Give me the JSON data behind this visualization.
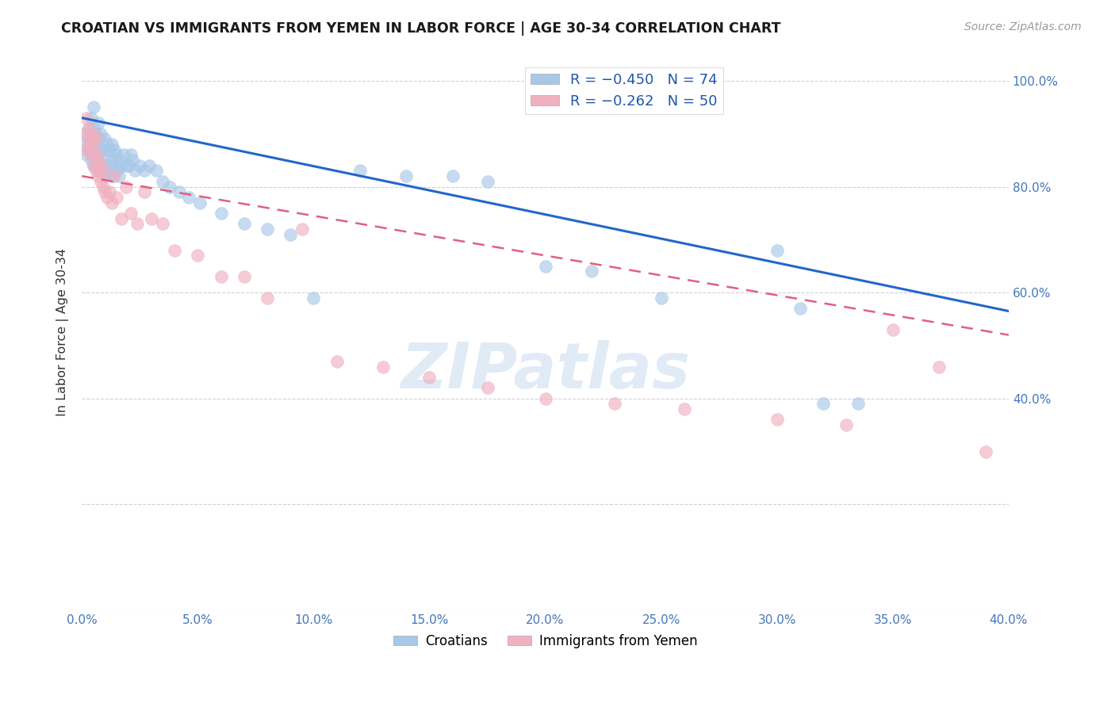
{
  "title": "CROATIAN VS IMMIGRANTS FROM YEMEN IN LABOR FORCE | AGE 30-34 CORRELATION CHART",
  "source": "Source: ZipAtlas.com",
  "ylabel": "In Labor Force | Age 30-34",
  "xlim": [
    0.0,
    0.4
  ],
  "ylim": [
    0.0,
    1.05
  ],
  "x_ticks": [
    0.0,
    0.05,
    0.1,
    0.15,
    0.2,
    0.25,
    0.3,
    0.35,
    0.4
  ],
  "y_ticks": [
    0.0,
    0.2,
    0.4,
    0.6,
    0.8,
    1.0
  ],
  "y_ticks_right": [
    0.4,
    0.6,
    0.8,
    1.0
  ],
  "blue_R": -0.45,
  "blue_N": 74,
  "pink_R": -0.262,
  "pink_N": 50,
  "blue_color": "#a8c8e8",
  "pink_color": "#f0b0c0",
  "blue_line_color": "#2266cc",
  "pink_line_color": "#e06080",
  "watermark": "ZIPatlas",
  "blue_scatter_x": [
    0.001,
    0.002,
    0.002,
    0.003,
    0.003,
    0.003,
    0.004,
    0.004,
    0.004,
    0.005,
    0.005,
    0.005,
    0.005,
    0.005,
    0.006,
    0.006,
    0.006,
    0.007,
    0.007,
    0.007,
    0.007,
    0.008,
    0.008,
    0.008,
    0.009,
    0.009,
    0.01,
    0.01,
    0.01,
    0.011,
    0.011,
    0.012,
    0.012,
    0.013,
    0.013,
    0.013,
    0.014,
    0.014,
    0.015,
    0.015,
    0.016,
    0.016,
    0.017,
    0.018,
    0.019,
    0.02,
    0.021,
    0.022,
    0.023,
    0.025,
    0.027,
    0.029,
    0.032,
    0.035,
    0.038,
    0.042,
    0.046,
    0.051,
    0.06,
    0.07,
    0.08,
    0.09,
    0.1,
    0.12,
    0.14,
    0.16,
    0.175,
    0.2,
    0.22,
    0.25,
    0.3,
    0.31,
    0.32,
    0.335
  ],
  "blue_scatter_y": [
    0.88,
    0.86,
    0.9,
    0.87,
    0.89,
    0.91,
    0.85,
    0.88,
    0.93,
    0.84,
    0.86,
    0.89,
    0.91,
    0.95,
    0.84,
    0.87,
    0.9,
    0.83,
    0.86,
    0.89,
    0.92,
    0.84,
    0.87,
    0.9,
    0.83,
    0.87,
    0.82,
    0.85,
    0.89,
    0.84,
    0.88,
    0.83,
    0.87,
    0.82,
    0.85,
    0.88,
    0.84,
    0.87,
    0.83,
    0.86,
    0.82,
    0.85,
    0.84,
    0.86,
    0.84,
    0.84,
    0.86,
    0.85,
    0.83,
    0.84,
    0.83,
    0.84,
    0.83,
    0.81,
    0.8,
    0.79,
    0.78,
    0.77,
    0.75,
    0.73,
    0.72,
    0.71,
    0.59,
    0.83,
    0.82,
    0.82,
    0.81,
    0.65,
    0.64,
    0.59,
    0.68,
    0.57,
    0.39,
    0.39
  ],
  "pink_scatter_x": [
    0.001,
    0.002,
    0.002,
    0.003,
    0.003,
    0.004,
    0.004,
    0.005,
    0.005,
    0.005,
    0.006,
    0.006,
    0.006,
    0.007,
    0.007,
    0.008,
    0.008,
    0.009,
    0.009,
    0.01,
    0.011,
    0.012,
    0.013,
    0.014,
    0.015,
    0.017,
    0.019,
    0.021,
    0.024,
    0.027,
    0.03,
    0.035,
    0.04,
    0.05,
    0.06,
    0.07,
    0.08,
    0.095,
    0.11,
    0.13,
    0.15,
    0.175,
    0.2,
    0.23,
    0.26,
    0.3,
    0.33,
    0.35,
    0.37,
    0.39
  ],
  "pink_scatter_y": [
    0.9,
    0.87,
    0.93,
    0.88,
    0.91,
    0.86,
    0.89,
    0.84,
    0.87,
    0.9,
    0.83,
    0.86,
    0.89,
    0.82,
    0.85,
    0.81,
    0.84,
    0.8,
    0.83,
    0.79,
    0.78,
    0.79,
    0.77,
    0.82,
    0.78,
    0.74,
    0.8,
    0.75,
    0.73,
    0.79,
    0.74,
    0.73,
    0.68,
    0.67,
    0.63,
    0.63,
    0.59,
    0.72,
    0.47,
    0.46,
    0.44,
    0.42,
    0.4,
    0.39,
    0.38,
    0.36,
    0.35,
    0.53,
    0.46,
    0.3
  ],
  "blue_line_x": [
    0.0,
    0.4
  ],
  "blue_line_y": [
    0.93,
    0.565
  ],
  "pink_line_x": [
    0.0,
    0.4
  ],
  "pink_line_y": [
    0.82,
    0.52
  ],
  "legend_r_blue": "R = −0.450",
  "legend_n_blue": "N = 74",
  "legend_r_pink": "R = −0.262",
  "legend_n_pink": "N = 50"
}
